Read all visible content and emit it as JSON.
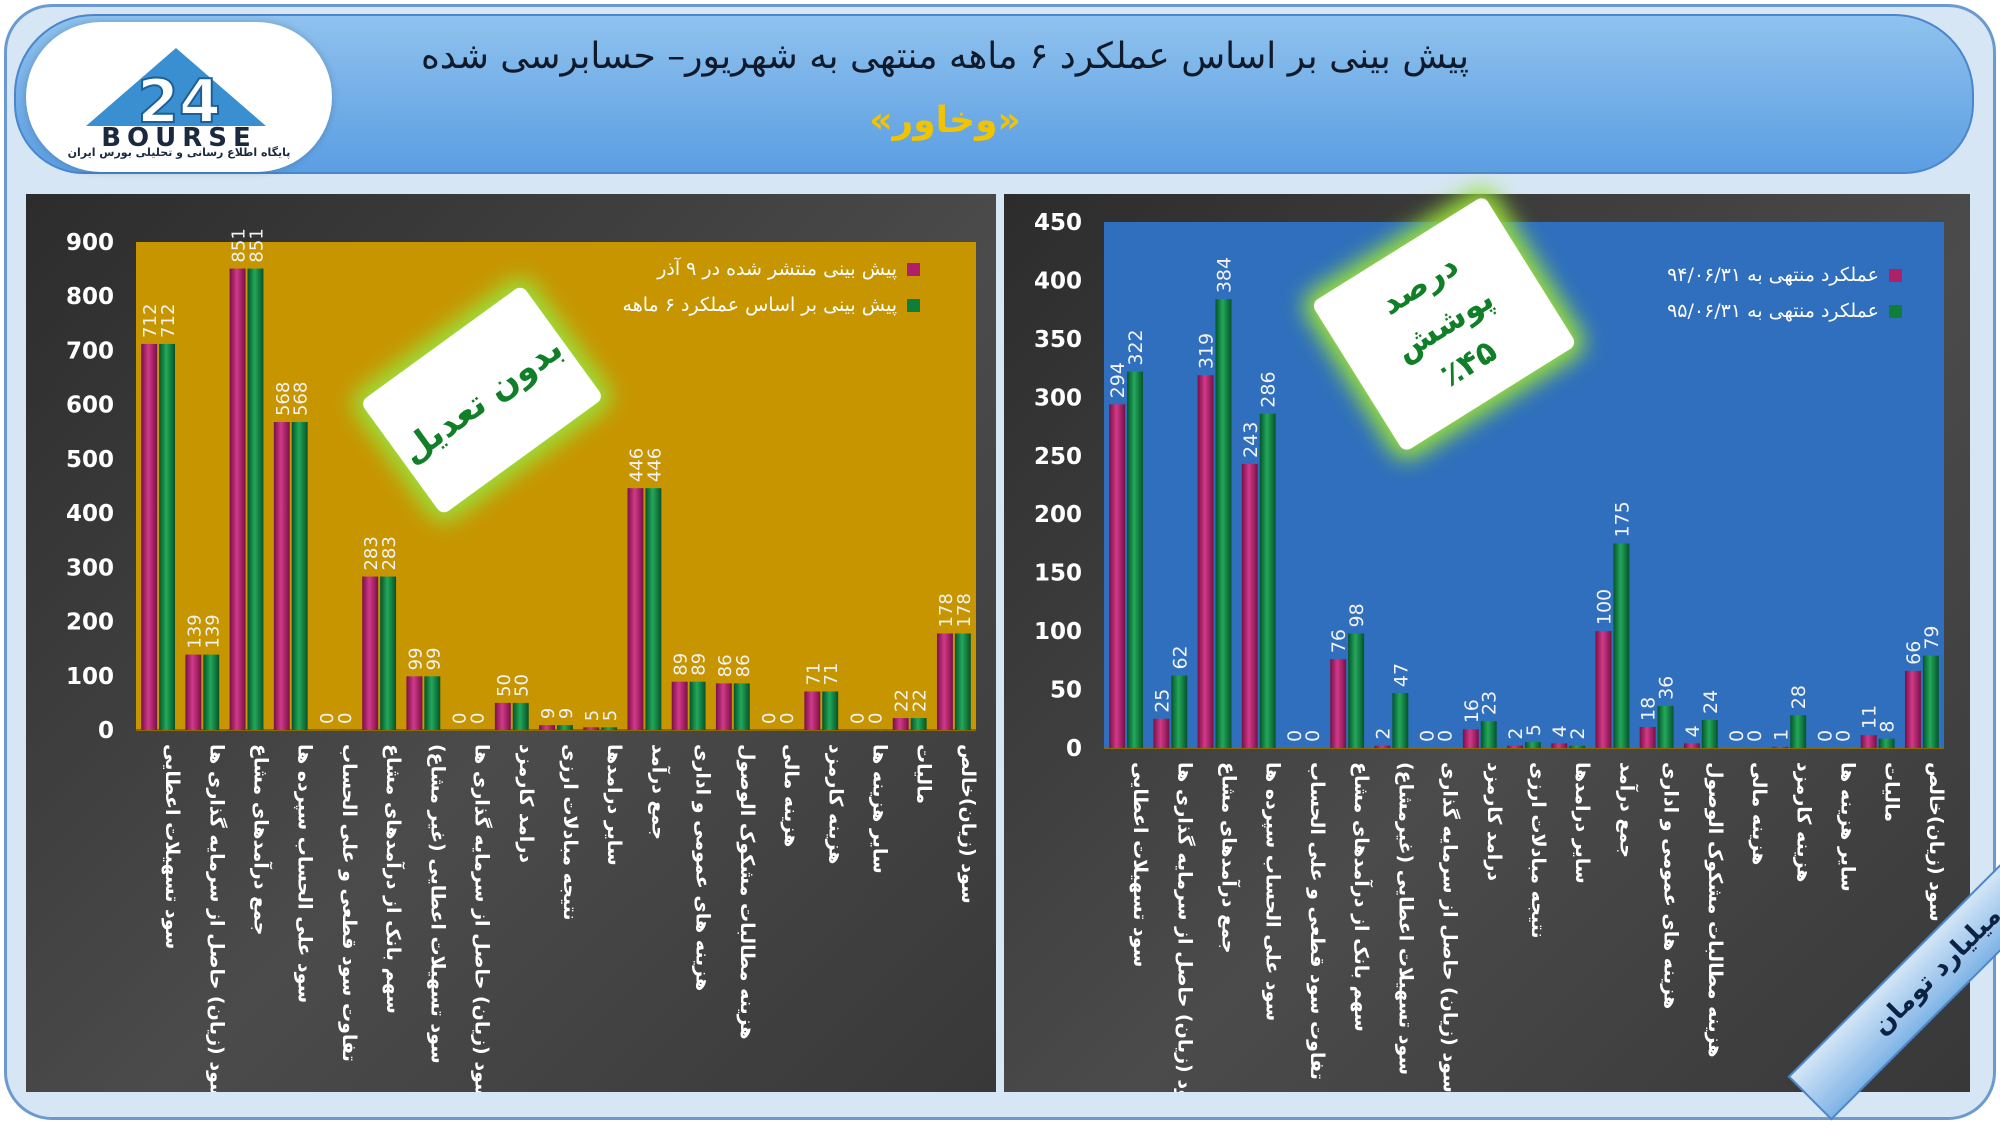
{
  "header": {
    "title": "پیش بینی بر اساس عملکرد ۶ ماهه منتهی به شهریور– حسابرسی شده",
    "company": "«وخاور»",
    "logo_text": "BOURSE",
    "logo_number": "24",
    "logo_subtitle": "پایگاه اطلاع رسانی و تحلیلی بورس ایران"
  },
  "colors": {
    "left_plot_bg": "#c79500",
    "right_plot_bg": "#2f6fbd",
    "series_magenta": "#b0206a",
    "series_green": "#0e7e3a",
    "title_yellow": "#f2c400"
  },
  "badges": {
    "left": "بدون تعدیل",
    "right_line1": "درصد پوشش",
    "right_line2": "٪۴۵"
  },
  "footer_ribbon": "ارقام به میلیارد تومان",
  "chart_data": [
    {
      "type": "bar",
      "title": "",
      "ylim": [
        0,
        900
      ],
      "yticks": [
        0,
        100,
        200,
        300,
        400,
        500,
        600,
        700,
        800,
        900
      ],
      "legend_position": "top-right",
      "categories": [
        "سود تسهیلات اعطایی",
        "سود (زیان) حاصل از سرمایه گذاری ها",
        "جمع درآمدهای مشاع",
        "سود علی الحساب سپرده ها",
        "تفاوت سود قطعی و علی الحساب",
        "سهم بانک از درآمدهای مشاع",
        "سود تسهیلات اعطایی (غیر مشاع)",
        "سود (زیان) حاصل از سرمایه گذاری ها",
        "درامد کارمزد",
        "نتیجه مبادلات ارزی",
        "سایر درامدها",
        "جمع درآمد",
        "هزینه های عمومی و اداری",
        "هزینه مطالبات مشکوک الوصول",
        "هزینه مالی",
        "هزینه کارمزد",
        "سایر هزینه ها",
        "مالیات",
        "سود (زیان)خالص"
      ],
      "series": [
        {
          "name": "پیش بینی منتشر شده در ۹ آذر",
          "values": [
            712,
            139,
            851,
            568,
            0,
            283,
            99,
            0,
            50,
            9,
            5,
            446,
            89,
            86,
            0,
            71,
            0,
            22,
            178
          ]
        },
        {
          "name": "پیش بینی بر اساس عملکرد ۶ ماهه",
          "values": [
            712,
            139,
            851,
            568,
            0,
            283,
            99,
            0,
            50,
            9,
            5,
            446,
            89,
            86,
            0,
            71,
            0,
            22,
            178
          ]
        }
      ]
    },
    {
      "type": "bar",
      "title": "",
      "ylim": [
        0,
        450
      ],
      "yticks": [
        0,
        50,
        100,
        150,
        200,
        250,
        300,
        350,
        400,
        450
      ],
      "legend_position": "top-right",
      "categories": [
        "سود تسهیلات اعطایی",
        "سود (زیان) حاصل از سرمایه گذاری ها",
        "جمع درآمدهای مشاع",
        "سود علی الحساب سپرده ها",
        "تفاوت سود قطعی و علی الحساب",
        "سهم بانک از درآمدهای مشاع",
        "سود تسهیلات اعطایی (غیرمشاع)",
        "سود (زیان) حاصل از سرمایه گذاری",
        "درامد کارمزد",
        "نتیجه مبادلات ارزی",
        "سایر درامدها",
        "جمع درآمد",
        "هزینه های عمومی و اداری",
        "هزینه مطالبات مشکوک الوصول",
        "هزینه مالی",
        "هزینه کارمزد",
        "سایر هزینه ها",
        "مالیات",
        "سود (زیان)خالص"
      ],
      "series": [
        {
          "name": "عملکرد منتهی به ۹۴/۰۶/۳۱",
          "values": [
            294,
            25,
            319,
            243,
            0,
            76,
            2,
            0,
            16,
            2,
            4,
            100,
            18,
            4,
            0,
            1,
            0,
            11,
            66
          ]
        },
        {
          "name": "عملکرد منتهی به ۹۵/۰۶/۳۱",
          "values": [
            322,
            62,
            384,
            286,
            0,
            98,
            47,
            0,
            23,
            5,
            2,
            175,
            36,
            24,
            0,
            28,
            0,
            8,
            79
          ]
        }
      ]
    }
  ]
}
